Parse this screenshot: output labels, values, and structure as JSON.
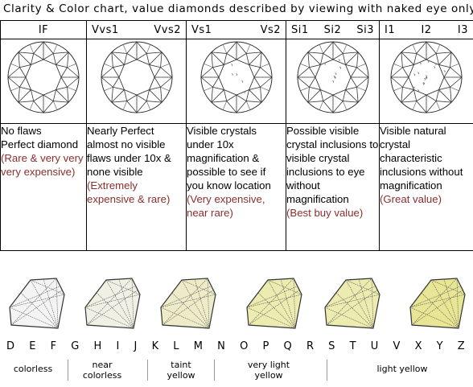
{
  "title": "Clarity & Color chart, value diamonds described by viewing with naked eye only",
  "clarity": [
    {
      "grades": [
        "IF"
      ],
      "desc": [
        "No flaws",
        "Perfect diamond"
      ],
      "note": "(Rare & very very very expensive)"
    },
    {
      "grades": [
        "Vvs1",
        "Vvs2"
      ],
      "desc": [
        "Nearly Perfect",
        "almost no visible flaws under 10x & none visible"
      ],
      "note": "(Extremely expensive & rare)"
    },
    {
      "grades": [
        "Vs1",
        "Vs2"
      ],
      "desc": [
        "Visible crystals under 10x magnification & possible to see if you know location"
      ],
      "note": "(Very expensive, near rare)"
    },
    {
      "grades": [
        "Si1",
        "Si2",
        "Si3"
      ],
      "desc": [
        "Possible visible crystal inclusions to visible crystal inclusions to eye without magnification"
      ],
      "note": "(Best buy value)"
    },
    {
      "grades": [
        "I1",
        "I2",
        "I3"
      ],
      "desc": [
        "Visible natural crystal characteristic inclusions without magnification"
      ],
      "note": "(Great value)"
    }
  ],
  "color": {
    "letters": [
      "D",
      "E",
      "F",
      "G",
      "H",
      "I",
      "J",
      "K",
      "L",
      "M",
      "N",
      "O",
      "P",
      "Q",
      "R",
      "S",
      "T",
      "U",
      "V",
      "X",
      "Y",
      "Z"
    ],
    "groups": [
      {
        "label": "colorless",
        "tint": "#f4f4f4"
      },
      {
        "label": "near colorless",
        "tint": "#f1f0e4"
      },
      {
        "label": "taint yellow",
        "tint": "#eeecc8"
      },
      {
        "label": "very light yellow",
        "tint": "#ecebb0"
      },
      {
        "label": "light yellow",
        "tint": "#e8e594"
      }
    ]
  }
}
